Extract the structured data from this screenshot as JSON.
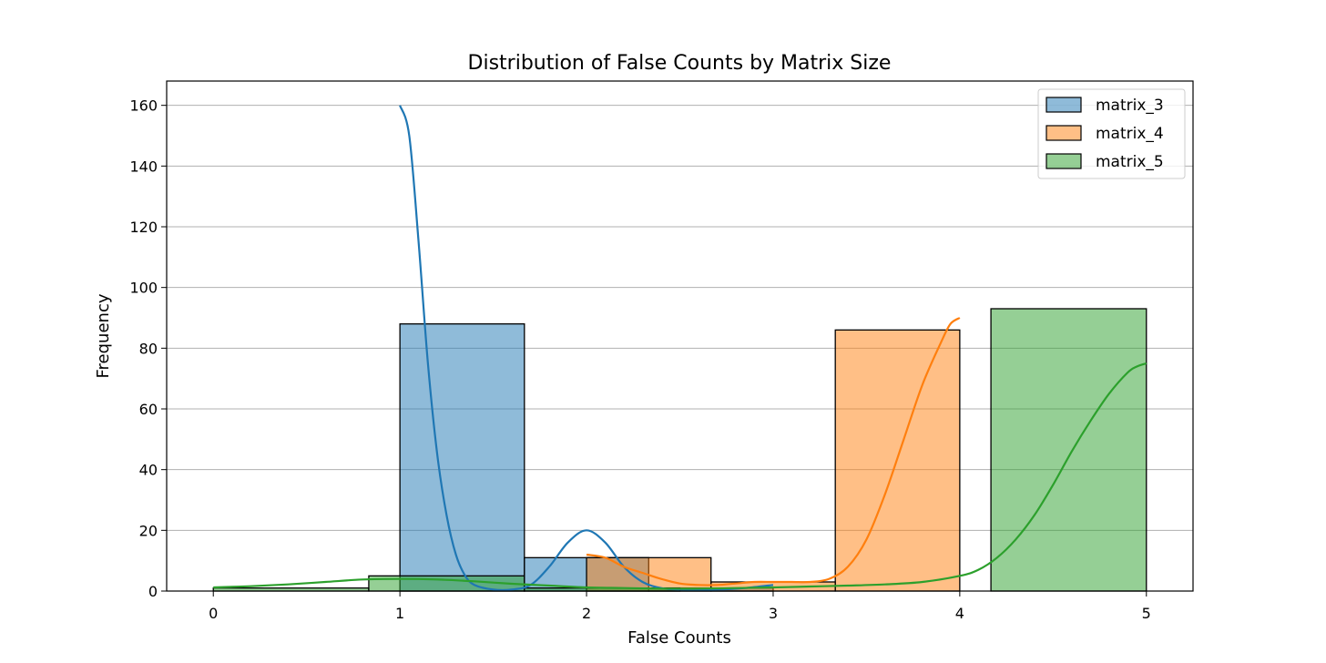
{
  "chart_data": {
    "type": "bar",
    "title": "Distribution of False Counts by Matrix Size",
    "xlabel": "False Counts",
    "ylabel": "Frequency",
    "xlim": [
      -0.25,
      5.25
    ],
    "ylim": [
      0,
      168
    ],
    "xticks": [
      0,
      1,
      2,
      3,
      4,
      5
    ],
    "yticks": [
      0,
      20,
      40,
      60,
      80,
      100,
      120,
      140,
      160
    ],
    "grid": "y",
    "legend_position": "top-right",
    "series": [
      {
        "name": "matrix_3",
        "color": "#1f77b4",
        "bins": [
          {
            "x0": 1.0,
            "x1": 1.667,
            "count": 88
          },
          {
            "x0": 1.667,
            "x1": 2.333,
            "count": 11
          },
          {
            "x0": 2.333,
            "x1": 3.0,
            "count": 1
          }
        ],
        "kde": [
          [
            1.0,
            160
          ],
          [
            1.05,
            150
          ],
          [
            1.1,
            115
          ],
          [
            1.15,
            75
          ],
          [
            1.2,
            45
          ],
          [
            1.25,
            25
          ],
          [
            1.3,
            12
          ],
          [
            1.35,
            5
          ],
          [
            1.4,
            2
          ],
          [
            1.5,
            0.5
          ],
          [
            1.6,
            0.5
          ],
          [
            1.7,
            2
          ],
          [
            1.8,
            8
          ],
          [
            1.9,
            16
          ],
          [
            2.0,
            20
          ],
          [
            2.1,
            16
          ],
          [
            2.2,
            8
          ],
          [
            2.3,
            3
          ],
          [
            2.4,
            1
          ],
          [
            2.5,
            0.5
          ],
          [
            2.7,
            0.5
          ],
          [
            2.85,
            1
          ],
          [
            3.0,
            2
          ]
        ]
      },
      {
        "name": "matrix_4",
        "color": "#ff7f0e",
        "bins": [
          {
            "x0": 2.0,
            "x1": 2.667,
            "count": 11
          },
          {
            "x0": 2.667,
            "x1": 3.333,
            "count": 3
          },
          {
            "x0": 3.333,
            "x1": 4.0,
            "count": 86
          }
        ],
        "kde": [
          [
            2.0,
            12
          ],
          [
            2.1,
            11
          ],
          [
            2.2,
            8
          ],
          [
            2.3,
            6
          ],
          [
            2.4,
            4
          ],
          [
            2.5,
            2.5
          ],
          [
            2.6,
            2
          ],
          [
            2.7,
            2
          ],
          [
            2.8,
            2.5
          ],
          [
            2.9,
            3
          ],
          [
            3.0,
            3
          ],
          [
            3.1,
            3
          ],
          [
            3.2,
            3
          ],
          [
            3.3,
            4
          ],
          [
            3.4,
            8
          ],
          [
            3.5,
            17
          ],
          [
            3.6,
            32
          ],
          [
            3.7,
            50
          ],
          [
            3.8,
            68
          ],
          [
            3.9,
            82
          ],
          [
            3.95,
            88
          ],
          [
            4.0,
            90
          ]
        ]
      },
      {
        "name": "matrix_5",
        "color": "#2ca02c",
        "bins": [
          {
            "x0": 0.0,
            "x1": 0.833,
            "count": 1
          },
          {
            "x0": 0.833,
            "x1": 1.667,
            "count": 5
          },
          {
            "x0": 1.667,
            "x1": 2.5,
            "count": 1
          },
          {
            "x0": 2.5,
            "x1": 3.333,
            "count": 0
          },
          {
            "x0": 3.333,
            "x1": 4.167,
            "count": 0
          },
          {
            "x0": 4.167,
            "x1": 5.0,
            "count": 93
          }
        ],
        "kde": [
          [
            0.0,
            1.2
          ],
          [
            0.2,
            1.6
          ],
          [
            0.4,
            2.2
          ],
          [
            0.6,
            3
          ],
          [
            0.8,
            3.8
          ],
          [
            1.0,
            4
          ],
          [
            1.2,
            3.8
          ],
          [
            1.4,
            3.2
          ],
          [
            1.6,
            2.4
          ],
          [
            1.8,
            1.8
          ],
          [
            2.0,
            1.2
          ],
          [
            2.2,
            1
          ],
          [
            2.4,
            0.8
          ],
          [
            2.6,
            0.8
          ],
          [
            2.8,
            1
          ],
          [
            3.0,
            1.2
          ],
          [
            3.2,
            1.5
          ],
          [
            3.4,
            1.8
          ],
          [
            3.6,
            2.2
          ],
          [
            3.8,
            3
          ],
          [
            4.0,
            5
          ],
          [
            4.1,
            7
          ],
          [
            4.2,
            11
          ],
          [
            4.3,
            17
          ],
          [
            4.4,
            25
          ],
          [
            4.5,
            35
          ],
          [
            4.6,
            46
          ],
          [
            4.7,
            56
          ],
          [
            4.8,
            65
          ],
          [
            4.9,
            72
          ],
          [
            4.95,
            74
          ],
          [
            5.0,
            75
          ]
        ]
      }
    ]
  }
}
